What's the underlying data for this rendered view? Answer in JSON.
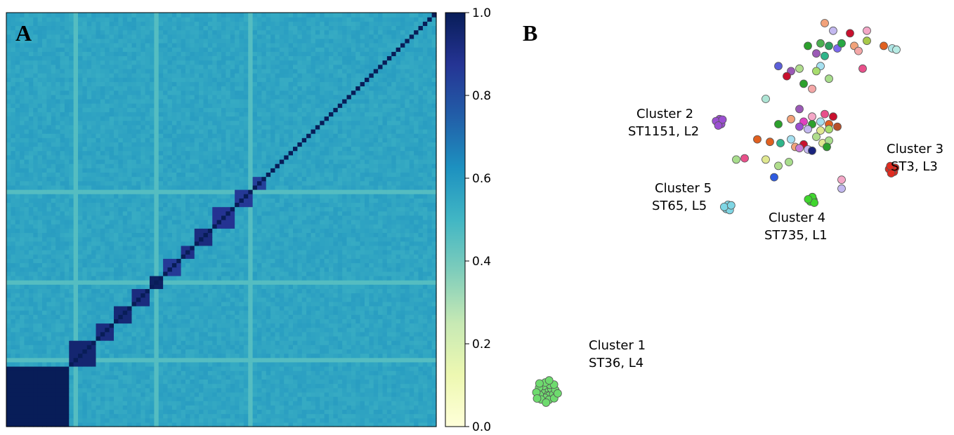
{
  "panels": {
    "a_letter": "A",
    "b_letter": "B"
  },
  "chart_data": [
    {
      "type": "heatmap",
      "panel": "A",
      "title": "",
      "xlabel": "",
      "ylabel": "",
      "colormap": "YlGnBu",
      "colorbar": {
        "range": [
          0.0,
          1.0
        ],
        "ticks": [
          "0.0",
          "0.2",
          "0.4",
          "0.6",
          "0.8",
          "1.0"
        ]
      },
      "diagonal_value": 1.0,
      "background_value": 0.56,
      "lighter_band_value": 0.46,
      "blocks_along_diagonal": [
        {
          "size": 14,
          "value": 1.0
        },
        {
          "size": 6,
          "value": 0.95
        },
        {
          "size": 4,
          "value": 0.92
        },
        {
          "size": 4,
          "value": 0.94
        },
        {
          "size": 4,
          "value": 0.92
        },
        {
          "size": 3,
          "value": 0.98
        },
        {
          "size": 4,
          "value": 0.86
        },
        {
          "size": 3,
          "value": 0.9
        },
        {
          "size": 4,
          "value": 0.92
        },
        {
          "size": 5,
          "value": 0.88
        },
        {
          "size": 4,
          "value": 0.86
        },
        {
          "size": 3,
          "value": 0.84
        }
      ]
    },
    {
      "type": "scatter",
      "panel": "B",
      "title": "",
      "xlabel": "",
      "ylabel": "",
      "clusters": [
        {
          "name": "Cluster 1",
          "label": "ST36, L4",
          "color": "#6edb6e",
          "center": [
            -5.2,
            -7.6
          ],
          "n": 24
        },
        {
          "name": "Cluster 2",
          "label": "ST1151, L2",
          "color": "#9b4fd1",
          "center": [
            -1.1,
            3.1
          ],
          "n": 7
        },
        {
          "name": "Cluster 3",
          "label": "ST3, L3",
          "color": "#e02b20",
          "center": [
            3.0,
            1.2
          ],
          "n": 8
        },
        {
          "name": "Cluster 4",
          "label": "ST735, L1",
          "color": "#3fd62d",
          "center": [
            1.1,
            0.0
          ],
          "n": 5
        },
        {
          "name": "Cluster 5",
          "label": "ST65, L5",
          "color": "#7fd6e4",
          "center": [
            -0.9,
            -0.3
          ],
          "n": 6
        }
      ],
      "scattered_points": [
        {
          "x": 1.4,
          "y": 7.0,
          "c": "#f2a27a"
        },
        {
          "x": 1.6,
          "y": 6.7,
          "c": "#c3b8f0"
        },
        {
          "x": 2.0,
          "y": 6.6,
          "c": "#c8102e"
        },
        {
          "x": 2.4,
          "y": 6.7,
          "c": "#f4a7c7"
        },
        {
          "x": 1.0,
          "y": 6.1,
          "c": "#2ca02c"
        },
        {
          "x": 1.3,
          "y": 6.2,
          "c": "#4caf50"
        },
        {
          "x": 1.5,
          "y": 6.1,
          "c": "#2e9e5e"
        },
        {
          "x": 1.7,
          "y": 6.0,
          "c": "#7b68ee"
        },
        {
          "x": 1.2,
          "y": 5.8,
          "c": "#9b59b6"
        },
        {
          "x": 1.4,
          "y": 5.7,
          "c": "#2fb58a"
        },
        {
          "x": 1.8,
          "y": 6.2,
          "c": "#27a844"
        },
        {
          "x": 2.1,
          "y": 6.1,
          "c": "#f2a27a"
        },
        {
          "x": 2.2,
          "y": 5.9,
          "c": "#f4a7a7"
        },
        {
          "x": 2.4,
          "y": 6.3,
          "c": "#a8c94a"
        },
        {
          "x": 2.8,
          "y": 6.1,
          "c": "#e06020"
        },
        {
          "x": 3.0,
          "y": 6.0,
          "c": "#aee5e5"
        },
        {
          "x": 3.1,
          "y": 5.95,
          "c": "#b7ebe4"
        },
        {
          "x": 2.3,
          "y": 5.2,
          "c": "#e8508a"
        },
        {
          "x": 0.3,
          "y": 5.3,
          "c": "#5b5fd9"
        },
        {
          "x": 0.6,
          "y": 5.1,
          "c": "#9b59b6"
        },
        {
          "x": 0.8,
          "y": 5.2,
          "c": "#b0dd8c"
        },
        {
          "x": 1.3,
          "y": 5.3,
          "c": "#a6e0f0"
        },
        {
          "x": 1.2,
          "y": 5.1,
          "c": "#a8dd6e"
        },
        {
          "x": 0.5,
          "y": 4.9,
          "c": "#c8102e"
        },
        {
          "x": 0.9,
          "y": 4.6,
          "c": "#2ca02c"
        },
        {
          "x": 1.1,
          "y": 4.4,
          "c": "#f4a7a7"
        },
        {
          "x": 1.5,
          "y": 4.8,
          "c": "#a8dd8c"
        },
        {
          "x": 0.0,
          "y": 4.0,
          "c": "#aee5d5"
        },
        {
          "x": 0.8,
          "y": 3.6,
          "c": "#9b59b6"
        },
        {
          "x": 0.6,
          "y": 3.2,
          "c": "#f2a27a"
        },
        {
          "x": 0.9,
          "y": 3.1,
          "c": "#e040c0"
        },
        {
          "x": 1.1,
          "y": 3.3,
          "c": "#f4a7c7"
        },
        {
          "x": 1.4,
          "y": 3.4,
          "c": "#e8508a"
        },
        {
          "x": 1.6,
          "y": 3.3,
          "c": "#c8102e"
        },
        {
          "x": 1.1,
          "y": 3.0,
          "c": "#2ca02c"
        },
        {
          "x": 1.3,
          "y": 3.1,
          "c": "#a6e0f0"
        },
        {
          "x": 1.5,
          "y": 3.0,
          "c": "#e06020"
        },
        {
          "x": 0.8,
          "y": 2.9,
          "c": "#9b4fd1"
        },
        {
          "x": 1.0,
          "y": 2.8,
          "c": "#c3b8f0"
        },
        {
          "x": 1.3,
          "y": 2.75,
          "c": "#e0e890"
        },
        {
          "x": 1.5,
          "y": 2.8,
          "c": "#a8dd6e"
        },
        {
          "x": 1.7,
          "y": 2.9,
          "c": "#b8502a"
        },
        {
          "x": 0.3,
          "y": 3.0,
          "c": "#2ca02c"
        },
        {
          "x": -0.2,
          "y": 2.4,
          "c": "#e06020"
        },
        {
          "x": 0.1,
          "y": 2.3,
          "c": "#e06020"
        },
        {
          "x": 0.35,
          "y": 2.25,
          "c": "#2fb58a"
        },
        {
          "x": 0.6,
          "y": 2.4,
          "c": "#a6e0f0"
        },
        {
          "x": 0.7,
          "y": 2.1,
          "c": "#f2a27a"
        },
        {
          "x": 0.9,
          "y": 2.2,
          "c": "#c8102e"
        },
        {
          "x": 1.0,
          "y": 2.0,
          "c": "#c3b8f0"
        },
        {
          "x": 1.1,
          "y": 1.95,
          "c": "#1a237e"
        },
        {
          "x": 0.8,
          "y": 2.05,
          "c": "#c97ad6"
        },
        {
          "x": 1.35,
          "y": 2.25,
          "c": "#e0e890"
        },
        {
          "x": 1.5,
          "y": 2.35,
          "c": "#a8dd8c"
        },
        {
          "x": 1.45,
          "y": 2.1,
          "c": "#2ca02c"
        },
        {
          "x": 1.2,
          "y": 2.5,
          "c": "#b0dd8c"
        },
        {
          "x": -0.7,
          "y": 1.6,
          "c": "#a8dd8c"
        },
        {
          "x": -0.5,
          "y": 1.65,
          "c": "#e8508a"
        },
        {
          "x": 0.0,
          "y": 1.6,
          "c": "#e0e890"
        },
        {
          "x": 0.3,
          "y": 1.35,
          "c": "#b0dd8c"
        },
        {
          "x": 0.55,
          "y": 1.5,
          "c": "#a8dd8c"
        },
        {
          "x": 0.2,
          "y": 0.9,
          "c": "#2f5be0"
        },
        {
          "x": 1.8,
          "y": 0.8,
          "c": "#f4a7c7"
        },
        {
          "x": 1.8,
          "y": 0.45,
          "c": "#c3b8f0"
        }
      ],
      "cluster_1_text": [
        "Cluster 1",
        "ST36, L4"
      ],
      "cluster_2_text": [
        "Cluster 2",
        "ST1151, L2"
      ],
      "cluster_3_text": [
        "Cluster 3",
        "ST3, L3"
      ],
      "cluster_4_text": [
        "Cluster 4",
        "ST735, L1"
      ],
      "cluster_5_text": [
        "Cluster 5",
        "ST65, L5"
      ]
    }
  ]
}
